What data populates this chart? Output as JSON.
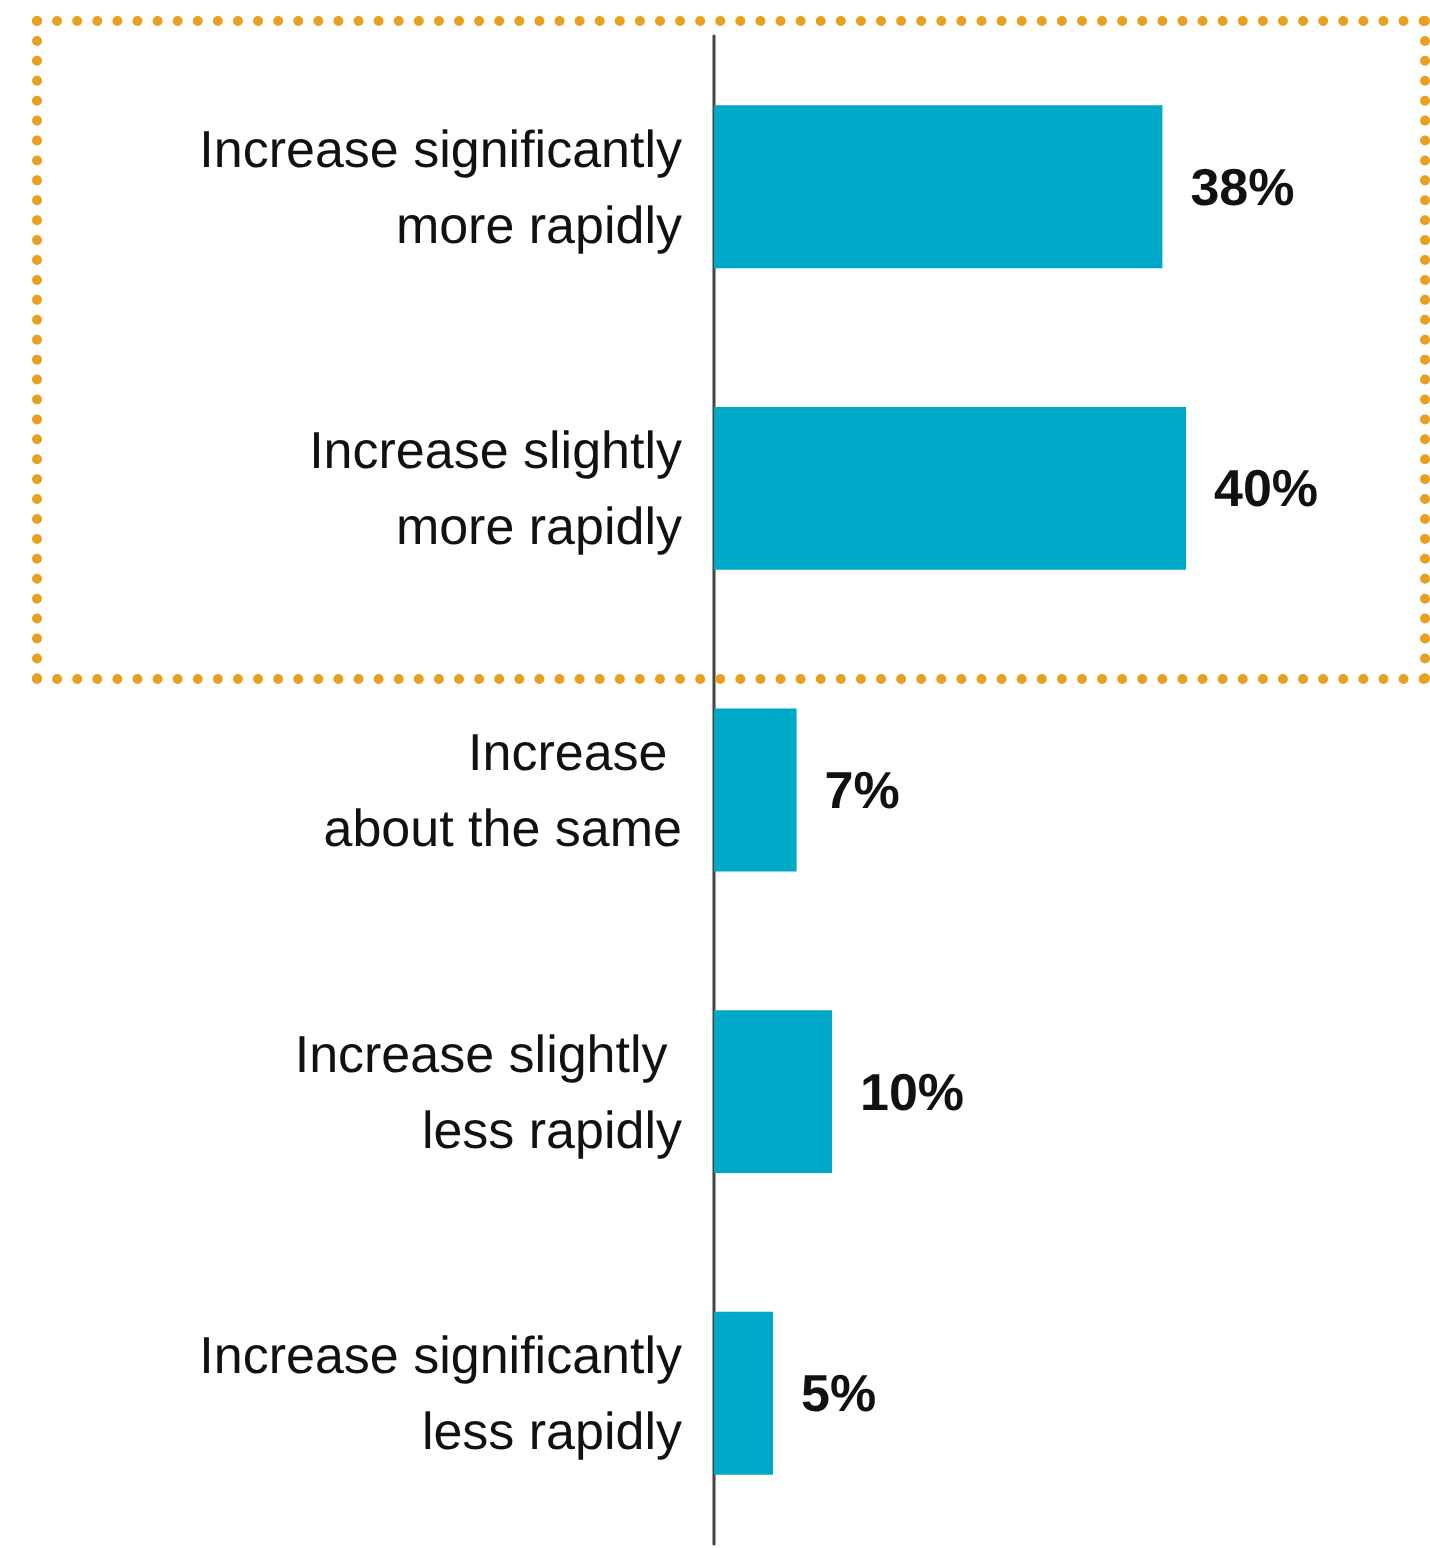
{
  "chart_data": {
    "type": "bar",
    "orientation": "horizontal",
    "categories": [
      "Increase significantly\nmore rapidly",
      "Increase slightly\nmore rapidly",
      "Increase \nabout the same",
      "Increase slightly \nless rapidly",
      "Increase significantly\nless rapidly"
    ],
    "values": [
      38,
      40,
      7,
      10,
      5
    ],
    "value_labels": [
      "38%",
      "40%",
      "7%",
      "10%",
      "5%"
    ],
    "color": "#00a8c8",
    "tick_labels": "y",
    "grid": false
  }
}
